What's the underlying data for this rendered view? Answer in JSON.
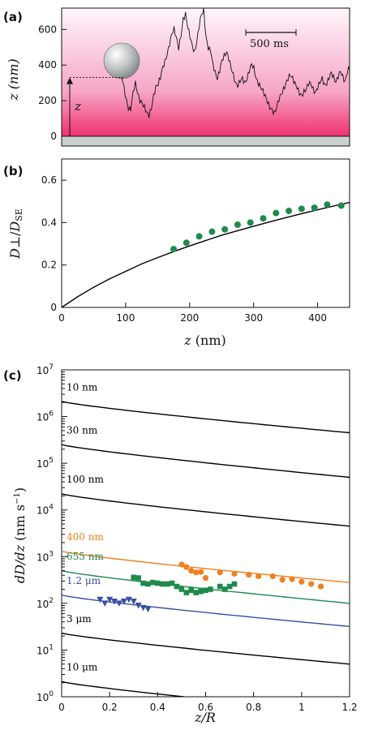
{
  "panels": {
    "a": {
      "label": "(a)"
    },
    "b": {
      "label": "(b)"
    },
    "c": {
      "label": "(c)"
    }
  },
  "chart_data": [
    {
      "panel": "a",
      "type": "line",
      "ylabel": "z (nm)",
      "ylim": [
        -40,
        720
      ],
      "yticks": [
        "0",
        "200",
        "400",
        "600"
      ],
      "scalebar_label": "500 ms",
      "marker_label": "z",
      "colors": {
        "band_top": "#fff6fb",
        "band_bottom": "#f0316e",
        "trace": "#111111",
        "wall": "#c9d1d0"
      },
      "trace": [
        [
          0.0,
          330
        ],
        [
          0.01,
          270
        ],
        [
          0.02,
          210
        ],
        [
          0.03,
          160
        ],
        [
          0.04,
          150
        ],
        [
          0.05,
          240
        ],
        [
          0.06,
          300
        ],
        [
          0.07,
          250
        ],
        [
          0.08,
          200
        ],
        [
          0.09,
          180
        ],
        [
          0.1,
          160
        ],
        [
          0.11,
          140
        ],
        [
          0.12,
          120
        ],
        [
          0.13,
          150
        ],
        [
          0.14,
          220
        ],
        [
          0.15,
          280
        ],
        [
          0.16,
          300
        ],
        [
          0.17,
          330
        ],
        [
          0.18,
          380
        ],
        [
          0.19,
          420
        ],
        [
          0.2,
          470
        ],
        [
          0.21,
          520
        ],
        [
          0.22,
          570
        ],
        [
          0.23,
          600
        ],
        [
          0.24,
          560
        ],
        [
          0.25,
          500
        ],
        [
          0.26,
          560
        ],
        [
          0.27,
          650
        ],
        [
          0.28,
          690
        ],
        [
          0.29,
          620
        ],
        [
          0.3,
          560
        ],
        [
          0.31,
          500
        ],
        [
          0.32,
          470
        ],
        [
          0.33,
          540
        ],
        [
          0.34,
          620
        ],
        [
          0.35,
          680
        ],
        [
          0.36,
          700
        ],
        [
          0.37,
          560
        ],
        [
          0.38,
          500
        ],
        [
          0.39,
          480
        ],
        [
          0.4,
          400
        ],
        [
          0.41,
          360
        ],
        [
          0.42,
          330
        ],
        [
          0.43,
          370
        ],
        [
          0.44,
          420
        ],
        [
          0.45,
          450
        ],
        [
          0.46,
          480
        ],
        [
          0.47,
          440
        ],
        [
          0.48,
          380
        ],
        [
          0.49,
          340
        ],
        [
          0.5,
          300
        ],
        [
          0.51,
          290
        ],
        [
          0.52,
          310
        ],
        [
          0.53,
          320
        ],
        [
          0.54,
          300
        ],
        [
          0.55,
          330
        ],
        [
          0.56,
          370
        ],
        [
          0.57,
          400
        ],
        [
          0.58,
          380
        ],
        [
          0.59,
          330
        ],
        [
          0.6,
          300
        ],
        [
          0.61,
          270
        ],
        [
          0.62,
          250
        ],
        [
          0.63,
          230
        ],
        [
          0.64,
          200
        ],
        [
          0.65,
          160
        ],
        [
          0.66,
          140
        ],
        [
          0.67,
          130
        ],
        [
          0.68,
          170
        ],
        [
          0.69,
          210
        ],
        [
          0.7,
          230
        ],
        [
          0.71,
          260
        ],
        [
          0.72,
          300
        ],
        [
          0.73,
          330
        ],
        [
          0.74,
          340
        ],
        [
          0.75,
          320
        ],
        [
          0.76,
          300
        ],
        [
          0.77,
          280
        ],
        [
          0.78,
          240
        ],
        [
          0.79,
          220
        ],
        [
          0.8,
          250
        ],
        [
          0.81,
          270
        ],
        [
          0.82,
          300
        ],
        [
          0.83,
          290
        ],
        [
          0.84,
          260
        ],
        [
          0.85,
          250
        ],
        [
          0.86,
          280
        ],
        [
          0.87,
          300
        ],
        [
          0.88,
          320
        ],
        [
          0.89,
          290
        ],
        [
          0.9,
          300
        ],
        [
          0.91,
          330
        ],
        [
          0.92,
          350
        ],
        [
          0.93,
          330
        ],
        [
          0.94,
          310
        ],
        [
          0.95,
          340
        ],
        [
          0.96,
          360
        ],
        [
          0.97,
          330
        ],
        [
          0.98,
          310
        ],
        [
          0.99,
          370
        ],
        [
          1.0,
          380
        ]
      ]
    },
    {
      "panel": "b",
      "type": "scatter",
      "xlabel": "z (nm)",
      "ylabel": "D⊥/DSE",
      "xlim": [
        0,
        450
      ],
      "ylim": [
        0,
        0.7
      ],
      "xticks": [
        0,
        100,
        200,
        300,
        400
      ],
      "yticks": [
        0,
        0.2,
        0.4,
        0.6
      ],
      "colors": {
        "points": "#1f8a4c",
        "curve": "#000000"
      },
      "curve": [
        [
          0,
          0
        ],
        [
          25,
          0.05
        ],
        [
          50,
          0.095
        ],
        [
          75,
          0.135
        ],
        [
          100,
          0.17
        ],
        [
          125,
          0.205
        ],
        [
          150,
          0.235
        ],
        [
          175,
          0.263
        ],
        [
          200,
          0.29
        ],
        [
          225,
          0.315
        ],
        [
          250,
          0.34
        ],
        [
          275,
          0.362
        ],
        [
          300,
          0.383
        ],
        [
          325,
          0.403
        ],
        [
          350,
          0.423
        ],
        [
          375,
          0.442
        ],
        [
          400,
          0.46
        ],
        [
          425,
          0.478
        ],
        [
          450,
          0.495
        ]
      ],
      "points": [
        [
          175,
          0.275
        ],
        [
          195,
          0.305
        ],
        [
          215,
          0.335
        ],
        [
          235,
          0.357
        ],
        [
          255,
          0.368
        ],
        [
          275,
          0.39
        ],
        [
          295,
          0.4
        ],
        [
          315,
          0.42
        ],
        [
          335,
          0.445
        ],
        [
          355,
          0.455
        ],
        [
          375,
          0.465
        ],
        [
          395,
          0.47
        ],
        [
          415,
          0.485
        ],
        [
          437,
          0.48
        ]
      ]
    },
    {
      "panel": "c",
      "type": "scatter",
      "xlabel": "z/R",
      "ylabel": "dD/dz (nm s−1)",
      "xlim": [
        0,
        1.2
      ],
      "ylog": true,
      "ylim_exp": [
        0,
        7
      ],
      "xticks": [
        "0",
        "0.2",
        "0.4",
        "0.6",
        "0.8",
        "1",
        "1.2"
      ],
      "yticks": [
        {
          "base": "10",
          "exp": "0"
        },
        {
          "base": "10",
          "exp": "1"
        },
        {
          "base": "10",
          "exp": "2"
        },
        {
          "base": "10",
          "exp": "3"
        },
        {
          "base": "10",
          "exp": "4"
        },
        {
          "base": "10",
          "exp": "5"
        },
        {
          "base": "10",
          "exp": "6"
        },
        {
          "base": "10",
          "exp": "7"
        }
      ],
      "curves": [
        {
          "label": "10 nm",
          "color": "#000000",
          "y0": 2100000.0,
          "y1": 450000.0
        },
        {
          "label": "30 nm",
          "color": "#000000",
          "y0": 250000.0,
          "y1": 50000.0
        },
        {
          "label": "100 nm",
          "color": "#000000",
          "y0": 22000.0,
          "y1": 4500.0
        },
        {
          "label": "400 nm",
          "color": "#f0801f",
          "y0": 1300.0,
          "y1": 280.0
        },
        {
          "label": "655 nm",
          "color": "#1f8a4c",
          "y0": 500.0,
          "y1": 100.0
        },
        {
          "label": "1.2 μm",
          "color": "#3a4fa3",
          "y0": 150.0,
          "y1": 32.0
        },
        {
          "label": "3 μm",
          "color": "#000000",
          "y0": 23.0,
          "y1": 5.0
        },
        {
          "label": "10 μm",
          "color": "#000000",
          "y0": 2.1,
          "y1": 0.45
        }
      ],
      "series": [
        {
          "marker": "circle",
          "color": "#f0801f",
          "points": [
            [
              0.5,
              680
            ],
            [
              0.52,
              600
            ],
            [
              0.54,
              500
            ],
            [
              0.56,
              460
            ],
            [
              0.58,
              470
            ],
            [
              0.6,
              350
            ],
            [
              0.66,
              460
            ],
            [
              0.72,
              430
            ],
            [
              0.78,
              410
            ],
            [
              0.82,
              380
            ],
            [
              0.88,
              380
            ],
            [
              0.92,
              320
            ],
            [
              0.96,
              330
            ],
            [
              1.0,
              290
            ],
            [
              1.04,
              260
            ],
            [
              1.08,
              230
            ]
          ]
        },
        {
          "marker": "square",
          "color": "#1f8a4c",
          "points": [
            [
              0.3,
              360
            ],
            [
              0.32,
              350
            ],
            [
              0.34,
              270
            ],
            [
              0.36,
              260
            ],
            [
              0.38,
              280
            ],
            [
              0.4,
              270
            ],
            [
              0.42,
              260
            ],
            [
              0.44,
              260
            ],
            [
              0.46,
              270
            ],
            [
              0.48,
              230
            ],
            [
              0.5,
              200
            ],
            [
              0.52,
              170
            ],
            [
              0.54,
              190
            ],
            [
              0.56,
              170
            ],
            [
              0.58,
              180
            ],
            [
              0.6,
              190
            ],
            [
              0.62,
              200
            ],
            [
              0.66,
              230
            ],
            [
              0.68,
              200
            ],
            [
              0.7,
              230
            ],
            [
              0.72,
              260
            ]
          ]
        },
        {
          "marker": "triangle-down",
          "color": "#3a4fa3",
          "points": [
            [
              0.16,
              120
            ],
            [
              0.18,
              100
            ],
            [
              0.2,
              120
            ],
            [
              0.22,
              110
            ],
            [
              0.24,
              100
            ],
            [
              0.26,
              110
            ],
            [
              0.28,
              120
            ],
            [
              0.3,
              110
            ],
            [
              0.32,
              90
            ],
            [
              0.34,
              80
            ],
            [
              0.36,
              75
            ]
          ]
        }
      ]
    }
  ]
}
